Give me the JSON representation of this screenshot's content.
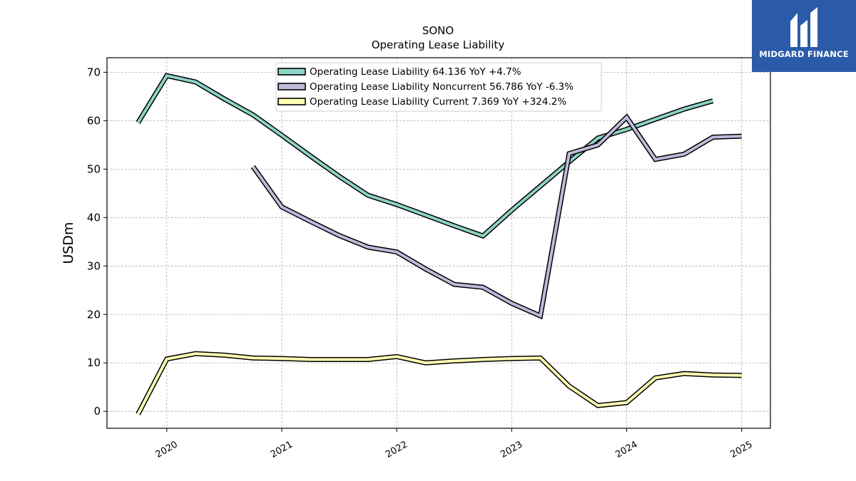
{
  "chart_data": {
    "type": "line",
    "title": "SONO",
    "subtitle": "Operating Lease Liability",
    "ylabel": "USDm",
    "xlabel": "",
    "xlim": [
      2019.48,
      2025.25
    ],
    "ylim": [
      -3.5,
      73.0
    ],
    "y_ticks": [
      0,
      10,
      20,
      30,
      40,
      50,
      60,
      70
    ],
    "x_ticks": [
      2020,
      2021,
      2022,
      2023,
      2024,
      2025
    ],
    "grid": true,
    "legend_position": "top-center",
    "series": [
      {
        "name": "Operating Lease Liability",
        "legend": "Operating Lease Liability  64.136 YoY +4.7%",
        "color": "#8dd3c7",
        "x": [
          2019.75,
          2020.0,
          2020.25,
          2020.5,
          2020.75,
          2021.0,
          2021.25,
          2021.5,
          2021.75,
          2022.0,
          2022.25,
          2022.5,
          2022.75,
          2023.0,
          2023.25,
          2023.5,
          2023.75,
          2024.0,
          2024.25,
          2024.5,
          2024.75
        ],
        "values": [
          59.6,
          69.3,
          68.0,
          64.5,
          61.2,
          57.0,
          52.7,
          48.5,
          44.6,
          42.7,
          40.5,
          38.3,
          36.2,
          41.5,
          46.5,
          51.5,
          56.4,
          58.2,
          60.3,
          62.4,
          64.1
        ]
      },
      {
        "name": "Operating Lease Liability Noncurrent",
        "legend": "Operating Lease Liability Noncurrent  56.786 YoY -6.3%",
        "color": "#bebada",
        "x": [
          2020.75,
          2021.0,
          2021.25,
          2021.5,
          2021.75,
          2022.0,
          2022.25,
          2022.5,
          2022.75,
          2023.0,
          2023.25,
          2023.5,
          2023.75,
          2024.0,
          2024.25,
          2024.5,
          2024.75,
          2025.0
        ],
        "values": [
          50.5,
          42.2,
          39.2,
          36.3,
          33.9,
          32.9,
          29.4,
          26.2,
          25.6,
          22.3,
          19.7,
          53.2,
          55.0,
          60.7,
          52.0,
          53.1,
          56.6,
          56.8
        ]
      },
      {
        "name": "Operating Lease Liability Current",
        "legend": "Operating Lease Liability Current  7.369 YoY +324.2%",
        "color": "#ffffb3",
        "x": [
          2019.75,
          2020.0,
          2020.25,
          2020.5,
          2020.75,
          2021.0,
          2021.25,
          2021.5,
          2021.75,
          2022.0,
          2022.25,
          2022.5,
          2022.75,
          2023.0,
          2023.25,
          2023.5,
          2023.75,
          2024.0,
          2024.25,
          2024.5,
          2024.75,
          2025.0
        ],
        "values": [
          -0.6,
          10.8,
          11.9,
          11.6,
          11.0,
          10.9,
          10.7,
          10.7,
          10.7,
          11.3,
          10.0,
          10.4,
          10.7,
          10.9,
          11.0,
          5.2,
          1.2,
          1.8,
          6.9,
          7.8,
          7.5,
          7.4
        ]
      }
    ]
  },
  "logo": {
    "text": "MIDGARD FINANCE",
    "icon": "midgard-finance-logo-icon"
  }
}
